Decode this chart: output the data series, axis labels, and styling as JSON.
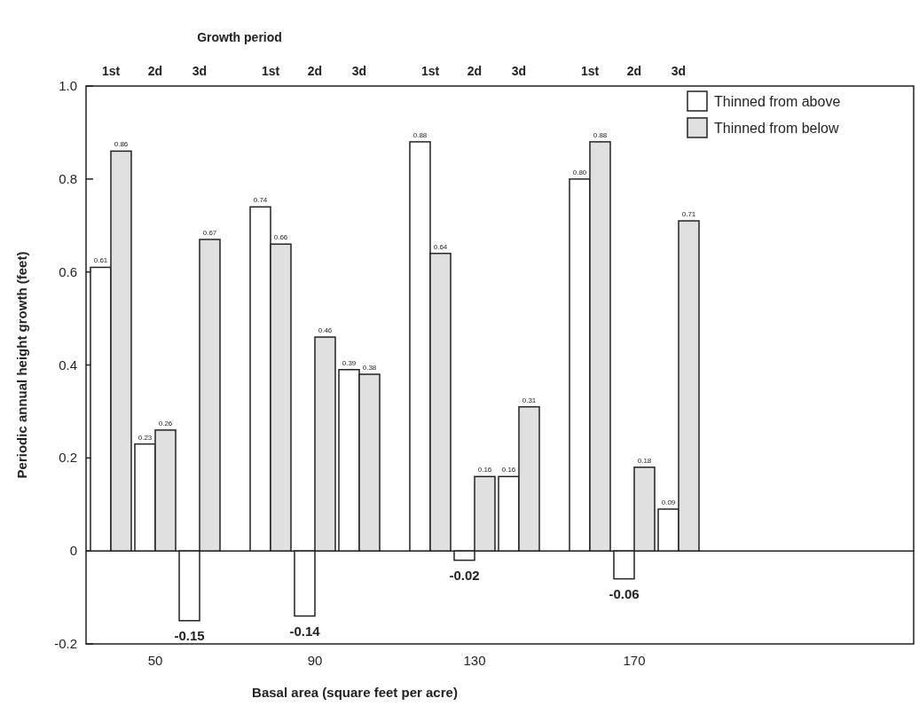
{
  "chart_data": {
    "type": "bar",
    "x2label": "Growth period",
    "xlabel": "Basal area (square feet per acre)",
    "ylabel": "Periodic annual height growth (feet)",
    "categories": [
      "1st",
      "2d",
      "3d",
      "1st",
      "2d",
      "3d",
      "1st",
      "2d",
      "3d",
      "1st",
      "2d",
      "3d"
    ],
    "series": [
      {
        "name": "Thinned from above",
        "color": "#ffffff",
        "values": [
          0.61,
          0.23,
          -0.15,
          0.74,
          -0.14,
          0.39,
          0.88,
          -0.02,
          0.16,
          0.8,
          -0.06,
          0.09
        ],
        "value_labels": [
          "0.61",
          "0.23",
          "-0.15",
          "0.74",
          "-0.14",
          "0.39",
          "0.88",
          "-0.02",
          "0.16",
          "0.80",
          "-0.06",
          "0.09"
        ]
      },
      {
        "name": "Thinned from below",
        "color": "#e0e0e0",
        "values": [
          0.86,
          0.26,
          0.67,
          0.66,
          0.46,
          0.38,
          0.64,
          0.16,
          0.31,
          0.88,
          0.18,
          0.71
        ],
        "value_labels": [
          "0.86",
          "0.26",
          "0.67",
          "0.66",
          "0.46",
          "0.38",
          "0.64",
          "0.16",
          "0.31",
          "0.88",
          "0.18",
          "0.71"
        ]
      }
    ],
    "annotations": [
      "50",
      "90",
      "130",
      "170"
    ],
    "ylim": [
      -0.2,
      1.0
    ],
    "yticks": [
      -0.2,
      0,
      0.2,
      0.4,
      0.6,
      0.8,
      {
        "value": 1.0,
        "label": "1.0"
      }
    ],
    "legend": "top right"
  }
}
